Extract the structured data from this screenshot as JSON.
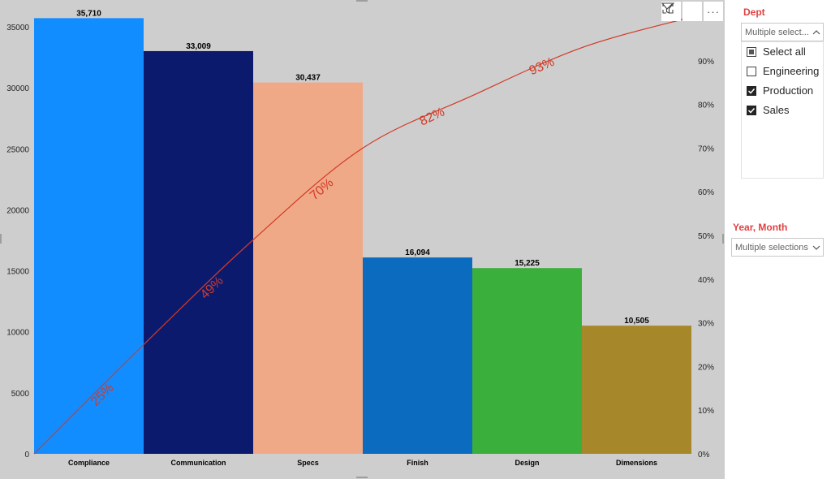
{
  "chart_data": {
    "type": "bar",
    "categories": [
      "Compliance",
      "Communication",
      "Specs",
      "Finish",
      "Design",
      "Dimensions"
    ],
    "values": [
      35710,
      33009,
      30437,
      16094,
      15225,
      10505
    ],
    "value_labels": [
      "35,710",
      "33,009",
      "30,437",
      "16,094",
      "15,225",
      "10,505"
    ],
    "bar_colors": [
      "#118dff",
      "#0c1a6e",
      "#f0a987",
      "#0b6bbf",
      "#3aaf3c",
      "#a6882a"
    ],
    "ylim": [
      0,
      36000
    ],
    "y_ticks": [
      0,
      5000,
      10000,
      15000,
      20000,
      25000,
      30000,
      35000
    ],
    "y_tick_labels": [
      "0",
      "5000",
      "10000",
      "15000",
      "20000",
      "25000",
      "30000",
      "35000"
    ],
    "y2_ticks": [
      0,
      10,
      20,
      30,
      40,
      50,
      60,
      70,
      80,
      90
    ],
    "y2_tick_labels": [
      "0%",
      "10%",
      "20%",
      "30%",
      "40%",
      "50%",
      "60%",
      "70%",
      "80%",
      "90%"
    ],
    "cumulative_percent": [
      25,
      49,
      70,
      82,
      93,
      100
    ],
    "cumulative_labels": [
      "25%",
      "49%",
      "70%",
      "82%",
      "93%"
    ],
    "line_color": "#d13a27",
    "grid": false,
    "title": "",
    "xlabel": "",
    "ylabel": ""
  },
  "toolbar": {
    "icons": [
      "filter-icon",
      "focus-mode-icon",
      "more-options-icon"
    ],
    "more_label": "···"
  },
  "dept_slicer": {
    "title": "Dept",
    "dropdown_value": "Multiple select...",
    "options": [
      {
        "label": "Select all",
        "state": "partial"
      },
      {
        "label": "Engineering",
        "state": "unchecked"
      },
      {
        "label": "Production",
        "state": "checked"
      },
      {
        "label": "Sales",
        "state": "checked"
      }
    ]
  },
  "year_month_slicer": {
    "title": "Year, Month",
    "dropdown_value": "Multiple selections"
  },
  "colors": {
    "slicer_title": "#e04040",
    "visual_bg": "#cecece"
  }
}
